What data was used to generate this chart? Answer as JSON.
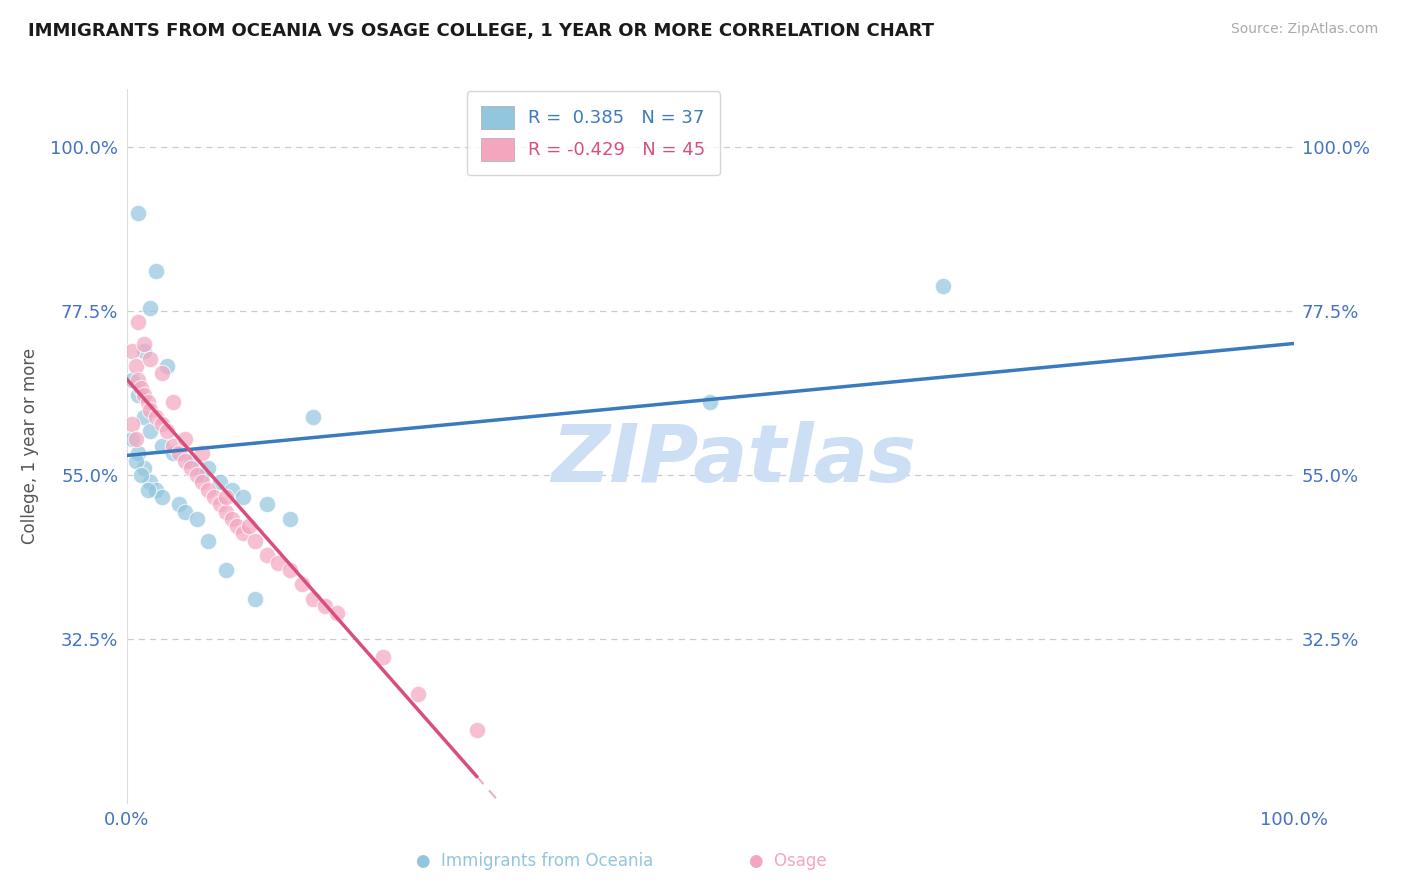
{
  "title": "IMMIGRANTS FROM OCEANIA VS OSAGE COLLEGE, 1 YEAR OR MORE CORRELATION CHART",
  "source_text": "Source: ZipAtlas.com",
  "ylabel": "College, 1 year or more",
  "xlim": [
    0.0,
    100.0
  ],
  "ylim": [
    10.0,
    108.0
  ],
  "ytick_values": [
    32.5,
    55.0,
    77.5,
    100.0
  ],
  "xtick_values": [
    0.0,
    100.0
  ],
  "blue_r": 0.385,
  "blue_n": 37,
  "pink_r": -0.429,
  "pink_n": 45,
  "blue_dot_color": "#92c5de",
  "pink_dot_color": "#f4a6bf",
  "blue_line_color": "#3a7bbf",
  "pink_line_color": "#d94f7a",
  "label_color": "#4472c4",
  "watermark_text": "ZIPatlas",
  "watermark_color": "#cddff5",
  "legend_label_blue": "Immigrants from Oceania",
  "legend_label_pink": "Osage",
  "grid_color": "#cccccc",
  "background_color": "#ffffff",
  "blue_x": [
    1.0,
    2.5,
    2.0,
    1.5,
    3.5,
    0.5,
    1.0,
    1.5,
    2.0,
    3.0,
    4.0,
    5.5,
    7.0,
    6.5,
    8.0,
    9.0,
    10.0,
    12.0,
    14.0,
    16.0,
    0.5,
    1.0,
    1.5,
    2.0,
    2.5,
    3.0,
    4.5,
    5.0,
    6.0,
    7.0,
    8.5,
    11.0,
    0.8,
    1.2,
    1.8,
    70.0,
    50.0
  ],
  "blue_y": [
    91.0,
    83.0,
    78.0,
    72.0,
    70.0,
    68.0,
    66.0,
    63.0,
    61.0,
    59.0,
    58.0,
    57.0,
    56.0,
    55.0,
    54.0,
    53.0,
    52.0,
    51.0,
    49.0,
    63.0,
    60.0,
    58.0,
    56.0,
    54.0,
    53.0,
    52.0,
    51.0,
    50.0,
    49.0,
    46.0,
    42.0,
    38.0,
    57.0,
    55.0,
    53.0,
    81.0,
    65.0
  ],
  "pink_x": [
    0.5,
    0.8,
    1.0,
    1.2,
    1.5,
    1.8,
    2.0,
    2.5,
    3.0,
    3.5,
    4.0,
    4.5,
    5.0,
    5.5,
    6.0,
    6.5,
    7.0,
    7.5,
    8.0,
    8.5,
    9.0,
    9.5,
    10.0,
    11.0,
    12.0,
    13.0,
    14.0,
    15.0,
    16.0,
    17.0,
    18.0,
    1.0,
    1.5,
    2.0,
    3.0,
    4.0,
    5.0,
    6.5,
    8.5,
    10.5,
    0.5,
    0.8,
    25.0,
    30.0,
    22.0
  ],
  "pink_y": [
    72.0,
    70.0,
    68.0,
    67.0,
    66.0,
    65.0,
    64.0,
    63.0,
    62.0,
    61.0,
    59.0,
    58.0,
    57.0,
    56.0,
    55.0,
    54.0,
    53.0,
    52.0,
    51.0,
    50.0,
    49.0,
    48.0,
    47.0,
    46.0,
    44.0,
    43.0,
    42.0,
    40.0,
    38.0,
    37.0,
    36.0,
    76.0,
    73.0,
    71.0,
    69.0,
    65.0,
    60.0,
    58.0,
    52.0,
    48.0,
    62.0,
    60.0,
    25.0,
    20.0,
    30.0
  ]
}
